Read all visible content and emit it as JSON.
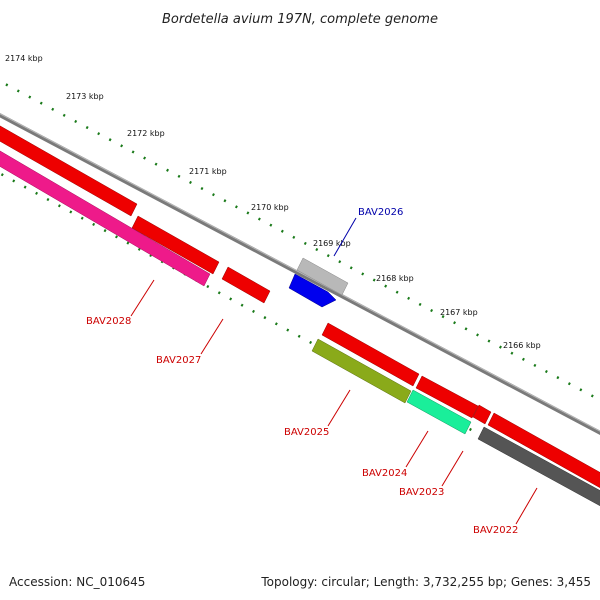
{
  "title": "Bordetella avium 197N, complete genome",
  "footer": {
    "accession": "Accession: NC_010645",
    "topology": "Topology: circular; Length: 3,732,255 bp; Genes: 3,455"
  },
  "scale": {
    "unit": "kbp",
    "labels": [
      "2174 kbp",
      "2173 kbp",
      "2172 kbp",
      "2171 kbp",
      "2170 kbp",
      "2169 kbp",
      "2168 kbp",
      "2167 kbp",
      "2166 kbp"
    ]
  },
  "colors": {
    "backbone": "#7a7a7a",
    "cds": "#ee0000",
    "tick": "#1a7a1a",
    "label_red": "#cc0000",
    "label_blue": "#0000aa",
    "BAV2028": "#ee1a8a",
    "BAV2027": "#ee0000",
    "BAV2026": "#0000ee",
    "BAV2025": "#8aaa1a",
    "BAV2024": "#1aee9a",
    "BAV2023": "#ee0000",
    "BAV2022": "#555555"
  },
  "genes": [
    {
      "name": "BAV2028",
      "label_color": "red"
    },
    {
      "name": "BAV2027",
      "label_color": "red"
    },
    {
      "name": "BAV2026",
      "label_color": "blue"
    },
    {
      "name": "BAV2025",
      "label_color": "red"
    },
    {
      "name": "BAV2024",
      "label_color": "red"
    },
    {
      "name": "BAV2023",
      "label_color": "red"
    },
    {
      "name": "BAV2022",
      "label_color": "red"
    }
  ]
}
